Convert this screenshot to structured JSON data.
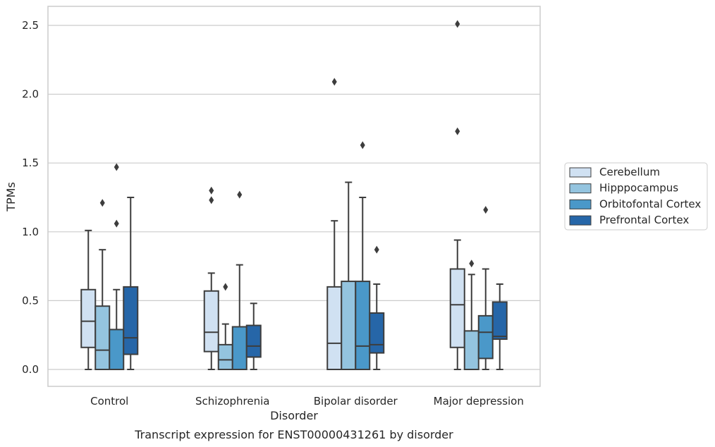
{
  "chart_data": {
    "type": "box",
    "title": "",
    "caption": "Transcript expression for ENST00000431261 by disorder",
    "xlabel": "Disorder",
    "ylabel": "TPMs",
    "ylim": [
      -0.12,
      2.63
    ],
    "yticks": [
      "0.0",
      "0.5",
      "1.0",
      "1.5",
      "2.0",
      "2.5"
    ],
    "grid": "horizontal",
    "legend_position": "right",
    "categories": [
      "Control",
      "Schizophrenia",
      "Bipolar disorder",
      "Major depression"
    ],
    "series": [
      {
        "name": "Cerebellum",
        "color": "#d0e1f2",
        "boxes": [
          {
            "whisker_low": 0.0,
            "q1": 0.16,
            "median": 0.35,
            "q3": 0.58,
            "whisker_high": 1.01,
            "outliers": []
          },
          {
            "whisker_low": 0.0,
            "q1": 0.13,
            "median": 0.27,
            "q3": 0.57,
            "whisker_high": 0.7,
            "outliers": [
              1.23,
              1.3
            ]
          },
          {
            "whisker_low": 0.0,
            "q1": 0.0,
            "median": 0.19,
            "q3": 0.6,
            "whisker_high": 1.08,
            "outliers": [
              2.09
            ]
          },
          {
            "whisker_low": 0.0,
            "q1": 0.16,
            "median": 0.47,
            "q3": 0.73,
            "whisker_high": 0.94,
            "outliers": [
              1.73,
              2.51
            ]
          }
        ]
      },
      {
        "name": "Hipppocampus",
        "color": "#94c4df",
        "boxes": [
          {
            "whisker_low": 0.0,
            "q1": 0.0,
            "median": 0.14,
            "q3": 0.46,
            "whisker_high": 0.87,
            "outliers": [
              1.21
            ]
          },
          {
            "whisker_low": 0.0,
            "q1": 0.0,
            "median": 0.07,
            "q3": 0.18,
            "whisker_high": 0.33,
            "outliers": [
              0.6
            ]
          },
          {
            "whisker_low": 0.0,
            "q1": 0.0,
            "median": 0.0,
            "q3": 0.64,
            "whisker_high": 1.36,
            "outliers": []
          },
          {
            "whisker_low": 0.0,
            "q1": 0.0,
            "median": 0.0,
            "q3": 0.28,
            "whisker_high": 0.69,
            "outliers": [
              0.77
            ]
          }
        ]
      },
      {
        "name": "Orbitofontal Cortex",
        "color": "#4a98c9",
        "boxes": [
          {
            "whisker_low": 0.0,
            "q1": 0.0,
            "median": 0.0,
            "q3": 0.29,
            "whisker_high": 0.58,
            "outliers": [
              1.06,
              1.47
            ]
          },
          {
            "whisker_low": 0.0,
            "q1": 0.0,
            "median": 0.0,
            "q3": 0.31,
            "whisker_high": 0.76,
            "outliers": [
              1.27
            ]
          },
          {
            "whisker_low": 0.0,
            "q1": 0.0,
            "median": 0.17,
            "q3": 0.64,
            "whisker_high": 1.25,
            "outliers": [
              1.63
            ]
          },
          {
            "whisker_low": 0.0,
            "q1": 0.08,
            "median": 0.27,
            "q3": 0.39,
            "whisker_high": 0.73,
            "outliers": [
              1.16
            ]
          }
        ]
      },
      {
        "name": "Prefrontal Cortex",
        "color": "#2666a8",
        "boxes": [
          {
            "whisker_low": 0.0,
            "q1": 0.11,
            "median": 0.23,
            "q3": 0.6,
            "whisker_high": 1.25,
            "outliers": []
          },
          {
            "whisker_low": 0.0,
            "q1": 0.09,
            "median": 0.17,
            "q3": 0.32,
            "whisker_high": 0.48,
            "outliers": []
          },
          {
            "whisker_low": 0.0,
            "q1": 0.12,
            "median": 0.18,
            "q3": 0.41,
            "whisker_high": 0.62,
            "outliers": [
              0.87
            ]
          },
          {
            "whisker_low": 0.0,
            "q1": 0.22,
            "median": 0.24,
            "q3": 0.49,
            "whisker_high": 0.62,
            "outliers": []
          }
        ]
      }
    ]
  }
}
